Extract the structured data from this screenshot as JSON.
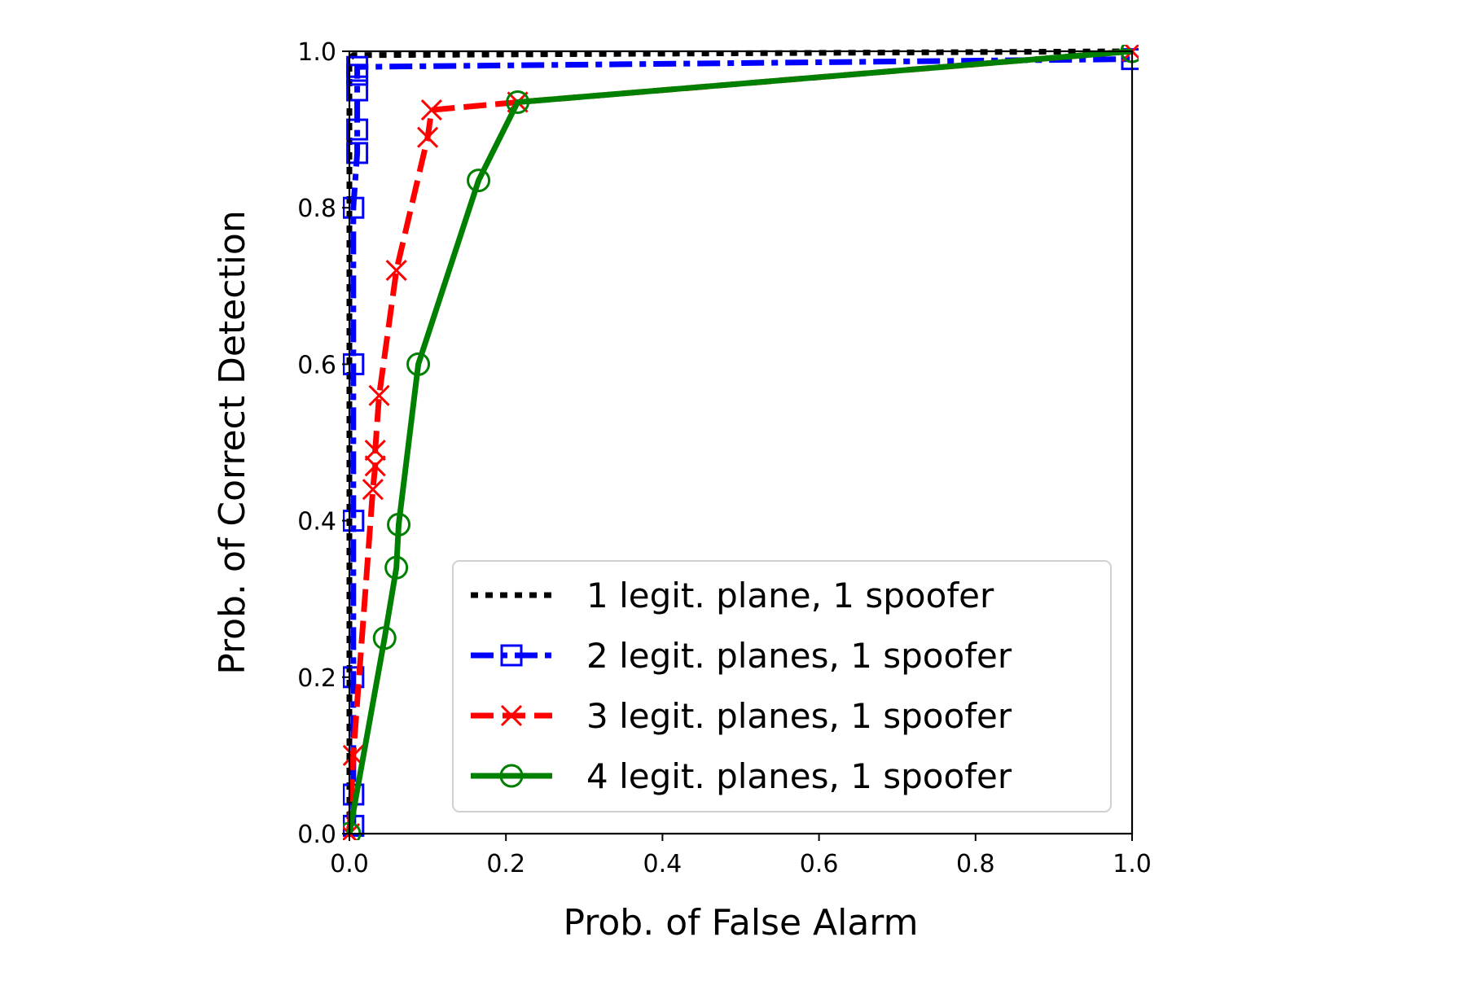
{
  "chart_data": {
    "type": "line",
    "xlabel": "Prob. of False Alarm",
    "ylabel": "Prob. of Correct Detection",
    "xlim": [
      0.0,
      1.0
    ],
    "ylim": [
      0.0,
      1.0
    ],
    "x_ticks": [
      "0.0",
      "0.2",
      "0.4",
      "0.6",
      "0.8",
      "1.0"
    ],
    "y_ticks": [
      "0.0",
      "0.2",
      "0.4",
      "0.6",
      "0.8",
      "1.0"
    ],
    "grid": false,
    "legend_position": "lower-right",
    "series": [
      {
        "name": "1 legit. plane, 1 spoofer",
        "color": "#000000",
        "line_style": "dotted",
        "marker": "none",
        "points": [
          [
            0.0,
            0.0
          ],
          [
            0.0,
            0.99
          ],
          [
            0.005,
            0.995
          ],
          [
            1.0,
            1.0
          ]
        ]
      },
      {
        "name": "2 legit. planes, 1 spoofer",
        "color": "#0000ff",
        "line_style": "dashdot",
        "marker": "square",
        "points": [
          [
            0.005,
            0.01
          ],
          [
            0.005,
            0.05
          ],
          [
            0.005,
            0.2
          ],
          [
            0.005,
            0.4
          ],
          [
            0.005,
            0.6
          ],
          [
            0.005,
            0.8
          ],
          [
            0.01,
            0.87
          ],
          [
            0.01,
            0.9
          ],
          [
            0.01,
            0.95
          ],
          [
            0.01,
            0.97
          ],
          [
            0.01,
            0.98
          ],
          [
            1.0,
            0.99
          ]
        ]
      },
      {
        "name": "3 legit. planes, 1 spoofer",
        "color": "#ff0000",
        "line_style": "dashed",
        "marker": "x",
        "points": [
          [
            0.0,
            0.0
          ],
          [
            0.005,
            0.1
          ],
          [
            0.03,
            0.44
          ],
          [
            0.033,
            0.47
          ],
          [
            0.033,
            0.49
          ],
          [
            0.038,
            0.56
          ],
          [
            0.06,
            0.72
          ],
          [
            0.1,
            0.89
          ],
          [
            0.105,
            0.925
          ],
          [
            0.215,
            0.935
          ],
          [
            1.0,
            1.0
          ]
        ]
      },
      {
        "name": "4 legit. planes, 1 spoofer",
        "color": "#008000",
        "line_style": "solid",
        "marker": "circle",
        "points": [
          [
            0.0,
            0.0
          ],
          [
            0.045,
            0.25
          ],
          [
            0.06,
            0.34
          ],
          [
            0.063,
            0.395
          ],
          [
            0.088,
            0.6
          ],
          [
            0.165,
            0.835
          ],
          [
            0.215,
            0.935
          ],
          [
            1.0,
            1.0
          ]
        ]
      }
    ]
  }
}
